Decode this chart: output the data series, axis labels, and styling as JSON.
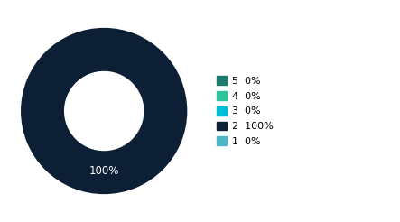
{
  "labels": [
    "5",
    "4",
    "3",
    "2",
    "1"
  ],
  "values": [
    0.0001,
    0.0001,
    0.0001,
    100,
    0.0001
  ],
  "colors": [
    "#1a7a6e",
    "#2ec49a",
    "#00bcd4",
    "#0d1f35",
    "#4db6c8"
  ],
  "legend_labels": [
    "5  0%",
    "4  0%",
    "3  0%",
    "2  100%",
    "1  0%"
  ],
  "donut_label": "100%",
  "donut_label_color": "#ffffff",
  "background_color": "#ffffff",
  "wedge_edge_color": "none"
}
